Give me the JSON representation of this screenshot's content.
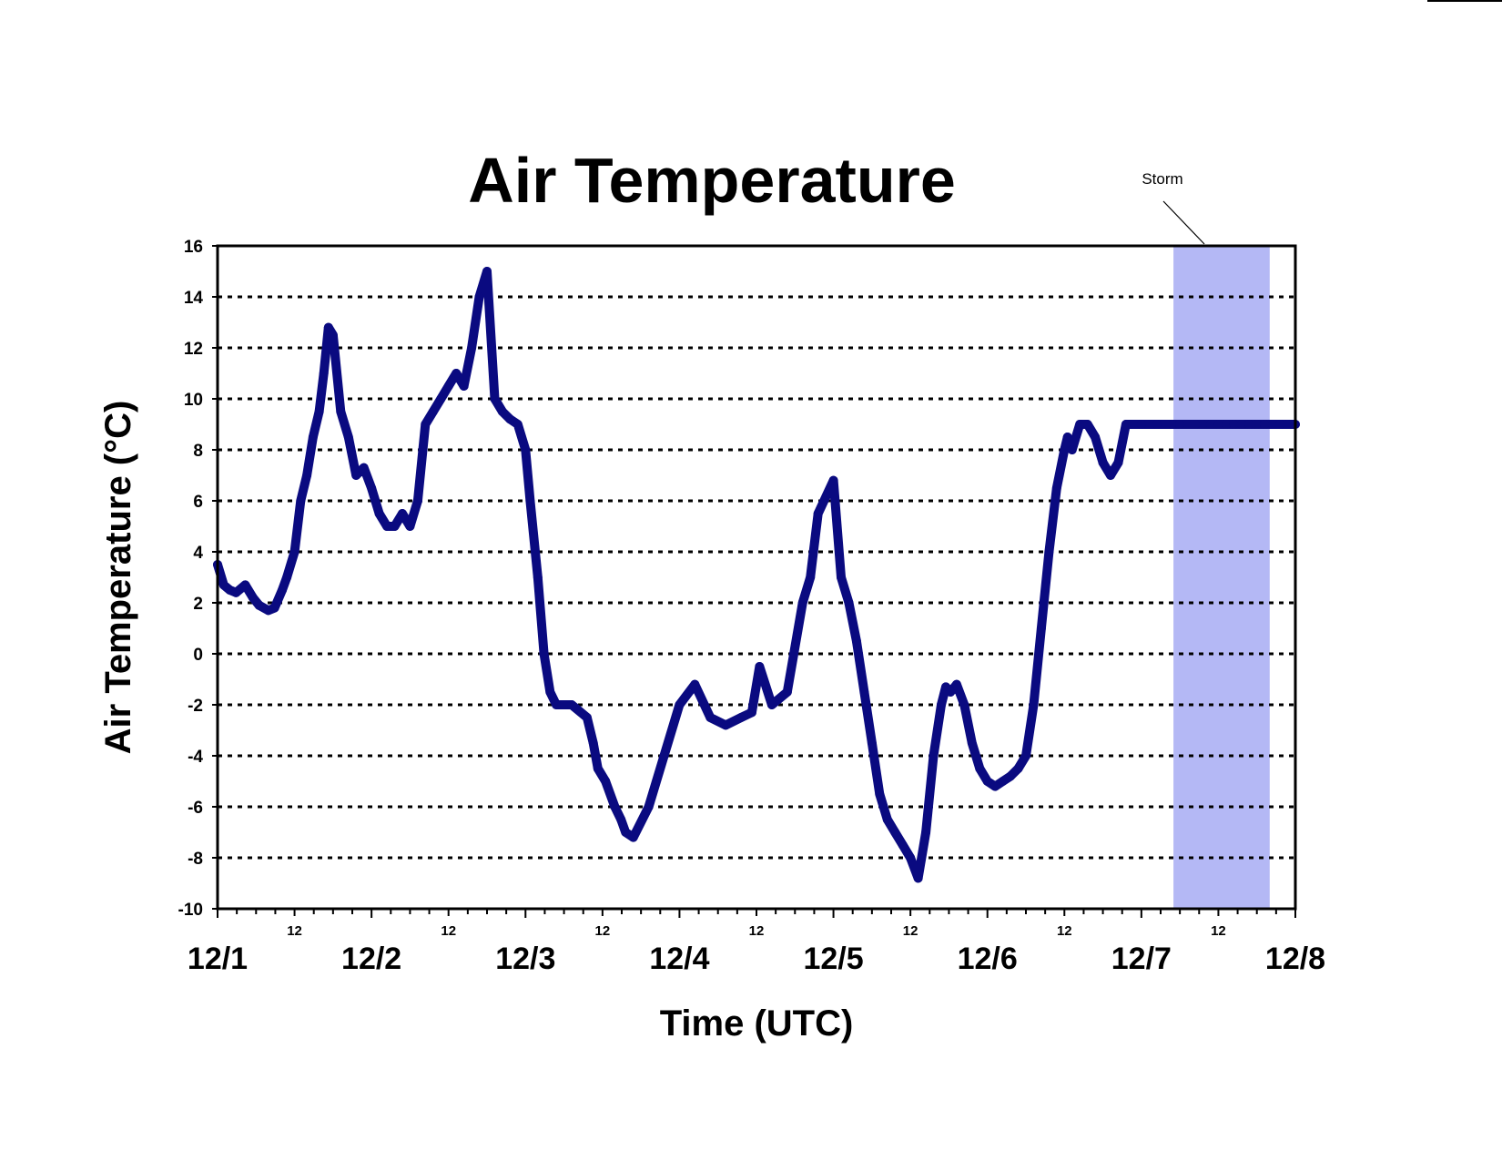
{
  "chart_data": {
    "type": "line",
    "title": "Air Temperature",
    "xlabel": "Time (UTC)",
    "ylabel": "Air Temperature (°C)",
    "ylim": [
      -10,
      16
    ],
    "yticks": [
      16,
      14,
      12,
      10,
      8,
      6,
      4,
      2,
      0,
      -2,
      -4,
      -6,
      -8,
      -10
    ],
    "xlim_days": [
      0,
      7
    ],
    "day_labels": [
      "12/1",
      "12/2",
      "12/3",
      "12/4",
      "12/5",
      "12/6",
      "12/7",
      "12/8"
    ],
    "hour_labels": [
      "12",
      "12",
      "12",
      "12",
      "12",
      "12",
      "12"
    ],
    "grid": "horizontal dashed",
    "line_color": "#0a0a80",
    "storm_color": "#b4b8f5",
    "annotations": [
      {
        "text": "Storm",
        "x_start": "12/7 05:00",
        "x_end": "12/7 20:00"
      }
    ],
    "series": [
      {
        "x_unit": "days since 12/1 00:00 UTC",
        "x": [
          0,
          0.04,
          0.08,
          0.12,
          0.18,
          0.23,
          0.27,
          0.33,
          0.37,
          0.42,
          0.45,
          0.5,
          0.54,
          0.58,
          0.62,
          0.66,
          0.69,
          0.72,
          0.75,
          0.8,
          0.85,
          0.9,
          0.95,
          1.0,
          1.05,
          1.1,
          1.15,
          1.2,
          1.25,
          1.3,
          1.35,
          1.4,
          1.45,
          1.5,
          1.55,
          1.6,
          1.65,
          1.7,
          1.75,
          1.8,
          1.85,
          1.9,
          1.95,
          2.0,
          2.03,
          2.08,
          2.12,
          2.16,
          2.2,
          2.3,
          2.4,
          2.44,
          2.47,
          2.52,
          2.58,
          2.62,
          2.65,
          2.7,
          2.8,
          2.9,
          3.0,
          3.1,
          3.2,
          3.3,
          3.4,
          3.47,
          3.52,
          3.6,
          3.7,
          3.8,
          3.85,
          3.9,
          4.0,
          4.05,
          4.1,
          4.15,
          4.2,
          4.25,
          4.3,
          4.35,
          4.4,
          4.45,
          4.5,
          4.55,
          4.6,
          4.65,
          4.7,
          4.73,
          4.76,
          4.8,
          4.85,
          4.9,
          4.95,
          5.0,
          5.05,
          5.1,
          5.15,
          5.2,
          5.25,
          5.3,
          5.35,
          5.4,
          5.45,
          5.5,
          5.52,
          5.55,
          5.6,
          5.65,
          5.7,
          5.75,
          5.8,
          5.85,
          5.9,
          6.0,
          6.1,
          6.2,
          6.25,
          6.35,
          6.4,
          6.45,
          6.5,
          6.55,
          6.6,
          6.65,
          6.7,
          6.75,
          6.8,
          6.85,
          6.9,
          6.95,
          7.0
        ],
        "y": [
          3.5,
          2.7,
          2.5,
          2.4,
          2.7,
          2.2,
          1.9,
          1.7,
          1.8,
          2.5,
          3.0,
          4.0,
          6.0,
          7.0,
          8.5,
          9.5,
          11.0,
          12.8,
          12.5,
          9.5,
          8.5,
          7.0,
          7.3,
          6.5,
          5.5,
          5.0,
          5.0,
          5.5,
          5.0,
          6.0,
          9.0,
          9.5,
          10.0,
          10.5,
          11.0,
          10.5,
          12.0,
          14.0,
          15.0,
          10.0,
          9.5,
          9.2,
          9.0,
          8.0,
          6.0,
          3.0,
          0.0,
          -1.5,
          -2.0,
          -2.0,
          -2.5,
          -3.5,
          -4.5,
          -5.0,
          -6.0,
          -6.5,
          -7.0,
          -7.2,
          -6.0,
          -4.0,
          -2.0,
          -1.2,
          -2.5,
          -2.8,
          -2.5,
          -2.3,
          -0.5,
          -2.0,
          -1.5,
          2.0,
          3.0,
          5.5,
          6.8,
          3.0,
          2.0,
          0.5,
          -1.5,
          -3.5,
          -5.5,
          -6.5,
          -7.0,
          -7.5,
          -8.0,
          -8.8,
          -7.0,
          -4.0,
          -2.0,
          -1.3,
          -1.5,
          -1.2,
          -2.0,
          -3.5,
          -4.5,
          -5.0,
          -5.2,
          -5.0,
          -4.8,
          -4.5,
          -4.0,
          -2.0,
          1.0,
          4.0,
          6.5,
          8.0,
          8.5,
          8.0,
          9.0,
          9.0,
          8.5,
          7.5,
          7.0,
          7.5,
          9.0,
          9.0,
          9.0,
          9.0,
          9.0,
          9.0,
          9.0,
          9.0,
          9.0,
          9.0,
          9.0,
          9.0,
          9.0,
          9.0,
          9.0,
          9.0,
          9.0,
          9.0,
          9.0
        ]
      }
    ]
  }
}
